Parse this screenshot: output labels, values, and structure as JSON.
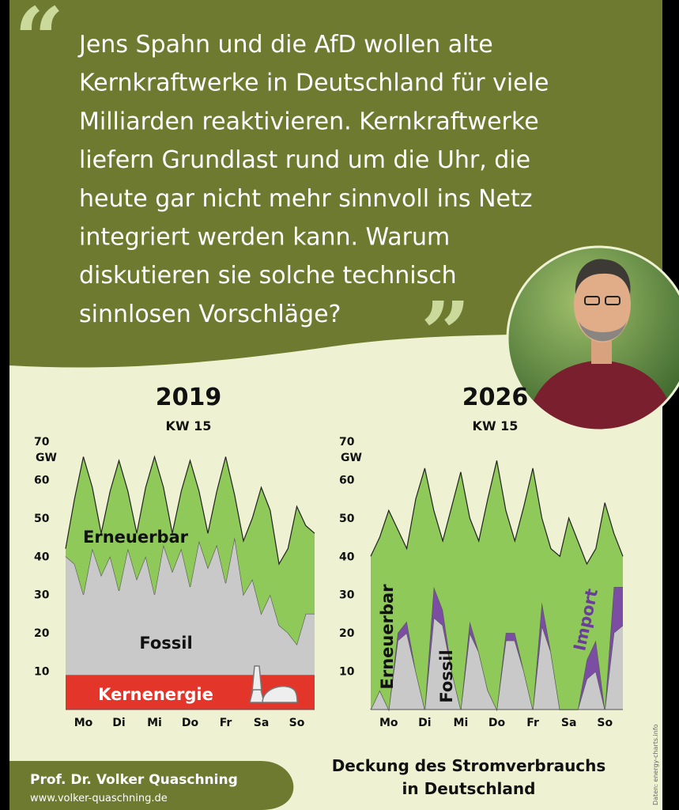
{
  "quote_lines": [
    "Jens Spahn und die AfD wollen alte",
    "Kernkraftwerke in Deutschland für viele",
    "Milliarden reaktivieren. Kernkraftwerke",
    "liefern Grundlast rund um die Uhr, die",
    "heute gar nicht mehr sinnvoll ins Netz",
    "integriert werden kann. Warum",
    "diskutieren sie solche technisch",
    "sinnlosen Vorschläge?"
  ],
  "author": "Prof. Dr. Volker Quaschning",
  "website": "www.volker-quaschning.de",
  "caption_lines": [
    "Deckung des Stromverbrauchs",
    "in Deutschland"
  ],
  "source": "Daten: energy-charts.info",
  "chart_data": [
    {
      "type": "stacked-area",
      "title": "2019",
      "subtitle": "KW 15",
      "ylabel": "GW",
      "x": [
        0,
        0.25,
        0.5,
        0.75,
        1,
        1.25,
        1.5,
        1.75,
        2,
        2.25,
        2.5,
        2.75,
        3,
        3.25,
        3.5,
        3.75,
        4,
        4.25,
        4.5,
        4.75,
        5,
        5.25,
        5.5,
        5.75,
        6,
        6.25,
        6.5,
        6.75,
        7
      ],
      "xlim": [
        0,
        7
      ],
      "xticks": [
        {
          "value": 0.5,
          "label": "Mo"
        },
        {
          "value": 1.5,
          "label": "Di"
        },
        {
          "value": 2.5,
          "label": "Mi"
        },
        {
          "value": 3.5,
          "label": "Do"
        },
        {
          "value": 4.5,
          "label": "Fr"
        },
        {
          "value": 5.5,
          "label": "Sa"
        },
        {
          "value": 6.5,
          "label": "So"
        }
      ],
      "ylim": [
        0,
        70
      ],
      "yticks": [
        10,
        20,
        30,
        40,
        50,
        60,
        70
      ],
      "series": [
        {
          "name": "Kernenergie",
          "color": "#e4352b",
          "values": [
            9,
            9,
            9,
            9,
            9,
            9,
            9,
            9,
            9,
            9,
            9,
            9,
            9,
            9,
            9,
            9,
            9,
            9,
            9,
            9,
            9,
            9,
            9,
            9,
            9,
            9,
            9,
            9,
            9
          ]
        },
        {
          "name": "Fossil",
          "color": "#c9c9c9",
          "values": [
            31,
            29,
            21,
            33,
            26,
            31,
            22,
            33,
            25,
            31,
            21,
            34,
            27,
            33,
            23,
            35,
            28,
            34,
            24,
            36,
            21,
            25,
            16,
            21,
            13,
            11,
            8,
            16,
            16
          ]
        },
        {
          "name": "Erneuerbar",
          "color": "#8fc95a",
          "values": [
            2,
            17,
            36,
            16,
            11,
            17,
            34,
            15,
            12,
            18,
            36,
            15,
            10,
            15,
            33,
            13,
            9,
            14,
            33,
            11,
            14,
            16,
            33,
            22,
            16,
            22,
            36,
            23,
            21
          ]
        }
      ]
    },
    {
      "type": "stacked-area",
      "title": "2026",
      "subtitle": "KW 15",
      "ylabel": "GW",
      "x": [
        0,
        0.25,
        0.5,
        0.75,
        1,
        1.25,
        1.5,
        1.75,
        2,
        2.25,
        2.5,
        2.75,
        3,
        3.25,
        3.5,
        3.75,
        4,
        4.25,
        4.5,
        4.75,
        5,
        5.25,
        5.5,
        5.75,
        6,
        6.25,
        6.5,
        6.75,
        7
      ],
      "xlim": [
        0,
        7
      ],
      "xticks": [
        {
          "value": 0.5,
          "label": "Mo"
        },
        {
          "value": 1.5,
          "label": "Di"
        },
        {
          "value": 2.5,
          "label": "Mi"
        },
        {
          "value": 3.5,
          "label": "Do"
        },
        {
          "value": 4.5,
          "label": "Fr"
        },
        {
          "value": 5.5,
          "label": "Sa"
        },
        {
          "value": 6.5,
          "label": "So"
        }
      ],
      "ylim": [
        0,
        70
      ],
      "yticks": [
        10,
        20,
        30,
        40,
        50,
        60,
        70
      ],
      "series": [
        {
          "name": "Fossil",
          "color": "#c9c9c9",
          "values": [
            0,
            5,
            0,
            18,
            20,
            10,
            0,
            24,
            22,
            10,
            0,
            20,
            15,
            5,
            0,
            18,
            18,
            10,
            0,
            22,
            15,
            0,
            0,
            0,
            8,
            10,
            0,
            20,
            22
          ]
        },
        {
          "name": "Import",
          "color": "#7b4ea3",
          "values": [
            0,
            0,
            0,
            2,
            3,
            0,
            0,
            8,
            4,
            0,
            0,
            3,
            0,
            0,
            0,
            2,
            2,
            0,
            0,
            6,
            0,
            0,
            0,
            0,
            5,
            8,
            0,
            12,
            10
          ]
        },
        {
          "name": "Erneuerbar",
          "color": "#8fc95a",
          "values": [
            40,
            40,
            52,
            27,
            19,
            45,
            63,
            20,
            18,
            43,
            62,
            27,
            29,
            50,
            65,
            32,
            24,
            43,
            63,
            22,
            27,
            40,
            50,
            44,
            25,
            24,
            54,
            14,
            8
          ]
        }
      ]
    }
  ]
}
